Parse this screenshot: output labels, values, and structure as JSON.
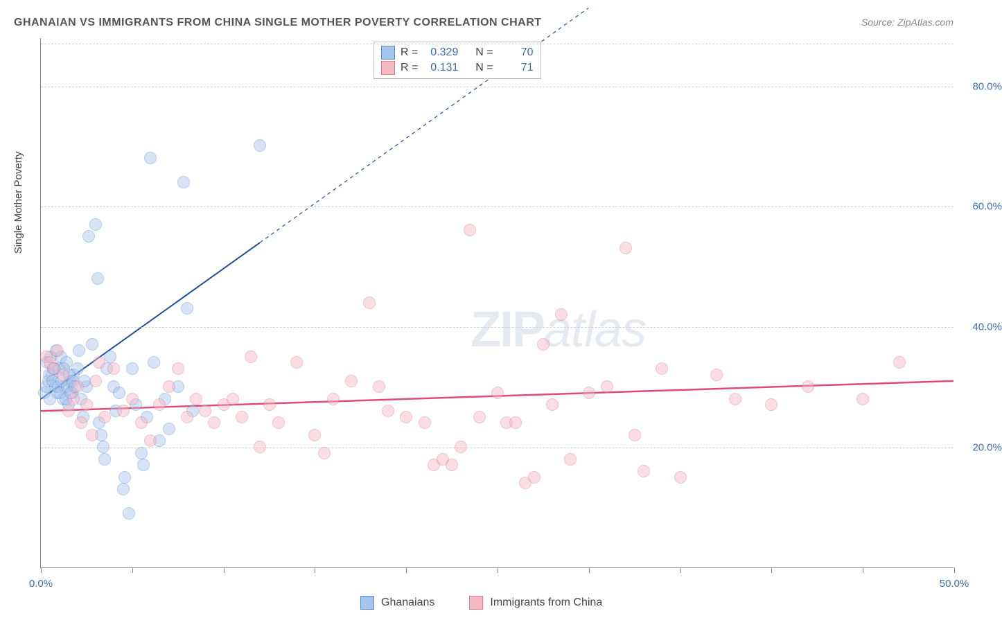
{
  "title": "GHANAIAN VS IMMIGRANTS FROM CHINA SINGLE MOTHER POVERTY CORRELATION CHART",
  "source": "Source: ZipAtlas.com",
  "ylabel": "Single Mother Poverty",
  "watermark_zip": "ZIP",
  "watermark_atlas": "atlas",
  "chart": {
    "type": "scatter",
    "background_color": "#ffffff",
    "grid_color": "#d0d0d0",
    "axis_color": "#888888",
    "label_color": "#3b6fb0",
    "title_color": "#555555",
    "xlim": [
      0,
      50
    ],
    "ylim": [
      0,
      88
    ],
    "xticks": [
      0,
      5,
      10,
      15,
      20,
      25,
      30,
      35,
      40,
      45,
      50
    ],
    "xtick_labels": {
      "0": "0.0%",
      "50": "50.0%"
    },
    "yticks": [
      20,
      40,
      60,
      80
    ],
    "ytick_labels": {
      "20": "20.0%",
      "40": "40.0%",
      "60": "60.0%",
      "80": "80.0%"
    },
    "marker_radius": 9,
    "marker_opacity": 0.45,
    "series": [
      {
        "key": "ghanaians",
        "name": "Ghanaians",
        "fill_color": "#a7c5ec",
        "stroke_color": "#5a8fd0",
        "line_color": "#1f4e9c",
        "line_width": 2,
        "R_label": "R =",
        "R_value": "0.329",
        "N_label": "N =",
        "N_value": "70",
        "trend": {
          "x1": 0,
          "y1": 28,
          "x2_solid": 12,
          "y2_solid": 54,
          "x2_dash": 30,
          "y2_dash": 93
        },
        "points": [
          [
            0.2,
            29
          ],
          [
            0.3,
            30
          ],
          [
            0.4,
            31
          ],
          [
            0.5,
            28
          ],
          [
            0.6,
            32
          ],
          [
            0.7,
            33
          ],
          [
            0.8,
            30
          ],
          [
            0.9,
            29
          ],
          [
            1.0,
            33
          ],
          [
            1.1,
            35
          ],
          [
            1.2,
            28
          ],
          [
            1.3,
            30
          ],
          [
            1.4,
            34
          ],
          [
            1.5,
            27
          ],
          [
            1.6,
            31
          ],
          [
            1.8,
            32
          ],
          [
            2.0,
            33
          ],
          [
            2.1,
            36
          ],
          [
            2.2,
            28
          ],
          [
            2.3,
            25
          ],
          [
            2.5,
            30
          ],
          [
            2.6,
            55
          ],
          [
            2.8,
            37
          ],
          [
            3.0,
            57
          ],
          [
            3.1,
            48
          ],
          [
            3.2,
            24
          ],
          [
            3.3,
            22
          ],
          [
            3.4,
            20
          ],
          [
            3.5,
            18
          ],
          [
            3.6,
            33
          ],
          [
            3.8,
            35
          ],
          [
            4.0,
            30
          ],
          [
            4.1,
            26
          ],
          [
            4.3,
            29
          ],
          [
            4.5,
            13
          ],
          [
            4.6,
            15
          ],
          [
            4.8,
            9
          ],
          [
            5.0,
            33
          ],
          [
            5.2,
            27
          ],
          [
            5.5,
            19
          ],
          [
            5.6,
            17
          ],
          [
            5.8,
            25
          ],
          [
            6.0,
            68
          ],
          [
            6.2,
            34
          ],
          [
            6.5,
            21
          ],
          [
            6.8,
            28
          ],
          [
            7.0,
            23
          ],
          [
            7.5,
            30
          ],
          [
            7.8,
            64
          ],
          [
            8.0,
            43
          ],
          [
            8.3,
            26
          ],
          [
            12.0,
            70
          ],
          [
            1.7,
            29
          ],
          [
            2.4,
            31
          ],
          [
            0.35,
            34
          ],
          [
            0.45,
            32
          ],
          [
            0.55,
            35
          ],
          [
            0.65,
            31
          ],
          [
            0.75,
            33
          ],
          [
            0.85,
            36
          ],
          [
            0.95,
            30
          ],
          [
            1.05,
            29
          ],
          [
            1.15,
            31
          ],
          [
            1.25,
            33
          ],
          [
            1.35,
            28
          ],
          [
            1.45,
            30
          ],
          [
            1.55,
            32
          ],
          [
            1.65,
            29
          ],
          [
            1.75,
            31
          ],
          [
            1.85,
            30
          ]
        ]
      },
      {
        "key": "china",
        "name": "Immigrants from China",
        "fill_color": "#f5b8c5",
        "stroke_color": "#e07a95",
        "line_color": "#e04a7a",
        "line_width": 2.5,
        "R_label": "R =",
        "R_value": "0.131",
        "N_label": "N =",
        "N_value": "71",
        "trend": {
          "x1": 0,
          "y1": 26,
          "x2_solid": 50,
          "y2_solid": 31
        },
        "points": [
          [
            0.3,
            35
          ],
          [
            0.5,
            34
          ],
          [
            0.7,
            33
          ],
          [
            0.9,
            36
          ],
          [
            1.2,
            32
          ],
          [
            1.5,
            26
          ],
          [
            1.8,
            28
          ],
          [
            2.0,
            30
          ],
          [
            2.2,
            24
          ],
          [
            2.5,
            27
          ],
          [
            2.8,
            22
          ],
          [
            3.0,
            31
          ],
          [
            3.5,
            25
          ],
          [
            4.0,
            33
          ],
          [
            4.5,
            26
          ],
          [
            5.0,
            28
          ],
          [
            5.5,
            24
          ],
          [
            6.0,
            21
          ],
          [
            6.5,
            27
          ],
          [
            7.0,
            30
          ],
          [
            7.5,
            33
          ],
          [
            8.0,
            25
          ],
          [
            8.5,
            28
          ],
          [
            9.0,
            26
          ],
          [
            9.5,
            24
          ],
          [
            10,
            27
          ],
          [
            10.5,
            28
          ],
          [
            11,
            25
          ],
          [
            11.5,
            35
          ],
          [
            12,
            20
          ],
          [
            12.5,
            27
          ],
          [
            13,
            24
          ],
          [
            14,
            34
          ],
          [
            15,
            22
          ],
          [
            15.5,
            19
          ],
          [
            16,
            28
          ],
          [
            17,
            31
          ],
          [
            18,
            44
          ],
          [
            18.5,
            30
          ],
          [
            19,
            26
          ],
          [
            20,
            25
          ],
          [
            21,
            24
          ],
          [
            21.5,
            17
          ],
          [
            22,
            18
          ],
          [
            22.5,
            17
          ],
          [
            23,
            20
          ],
          [
            23.5,
            56
          ],
          [
            24,
            25
          ],
          [
            25,
            29
          ],
          [
            25.5,
            24
          ],
          [
            26,
            24
          ],
          [
            26.5,
            14
          ],
          [
            27,
            15
          ],
          [
            27.5,
            37
          ],
          [
            28,
            27
          ],
          [
            28.5,
            42
          ],
          [
            29,
            18
          ],
          [
            30,
            29
          ],
          [
            31,
            30
          ],
          [
            32,
            53
          ],
          [
            32.5,
            22
          ],
          [
            33,
            16
          ],
          [
            34,
            33
          ],
          [
            35,
            15
          ],
          [
            37,
            32
          ],
          [
            38,
            28
          ],
          [
            40,
            27
          ],
          [
            42,
            30
          ],
          [
            45,
            28
          ],
          [
            47,
            34
          ],
          [
            3.2,
            34
          ]
        ]
      }
    ]
  },
  "legend_items": [
    "Ghanaians",
    "Immigrants from China"
  ]
}
